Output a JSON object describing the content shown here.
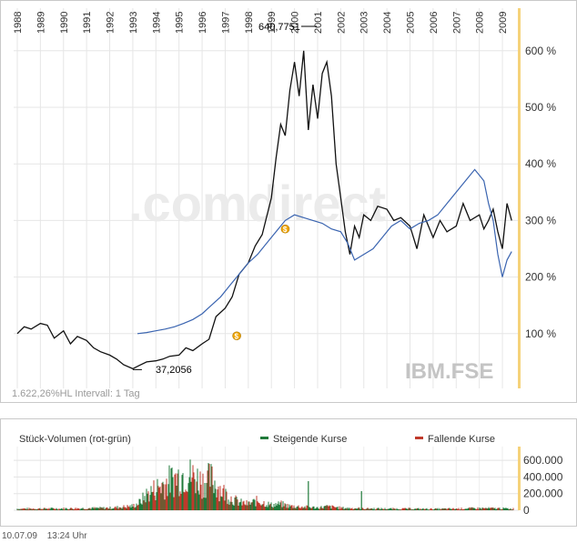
{
  "chart_data": [
    {
      "type": "line",
      "symbol": "IBM.FSE",
      "watermark": ".comdirect",
      "x_ticks": [
        "1988",
        "1989",
        "1990",
        "1991",
        "1992",
        "1993",
        "1994",
        "1995",
        "1996",
        "1997",
        "1998",
        "1999",
        "2000",
        "2001",
        "2002",
        "2003",
        "2004",
        "2005",
        "2006",
        "2007",
        "2008",
        "2009"
      ],
      "y_ticks": [
        100,
        200,
        300,
        400,
        500,
        600
      ],
      "y_tick_suffix": " %",
      "ylim": [
        0,
        650
      ],
      "max_label": "640,7751",
      "min_label": "37,2056",
      "info_text": "1.622,26%HL Intervall: 1 Tag",
      "series": [
        {
          "color": "#111111",
          "x": [
            1988.0,
            1988.3,
            1988.6,
            1989.0,
            1989.3,
            1989.6,
            1990.0,
            1990.3,
            1990.6,
            1991.0,
            1991.3,
            1991.6,
            1992.0,
            1992.3,
            1992.6,
            1993.0,
            1993.3,
            1993.6,
            1994.0,
            1994.3,
            1994.6,
            1995.0,
            1995.3,
            1995.6,
            1996.0,
            1996.3,
            1996.6,
            1997.0,
            1997.3,
            1997.6,
            1998.0,
            1998.3,
            1998.6,
            1999.0,
            1999.2,
            1999.4,
            1999.6,
            1999.8,
            2000.0,
            2000.2,
            2000.4,
            2000.6,
            2000.8,
            2001.0,
            2001.2,
            2001.4,
            2001.6,
            2001.8,
            2002.0,
            2002.2,
            2002.4,
            2002.6,
            2002.8,
            2003.0,
            2003.3,
            2003.6,
            2004.0,
            2004.3,
            2004.6,
            2005.0,
            2005.3,
            2005.6,
            2006.0,
            2006.3,
            2006.6,
            2007.0,
            2007.3,
            2007.6,
            2008.0,
            2008.2,
            2008.4,
            2008.6,
            2008.8,
            2009.0,
            2009.2,
            2009.4
          ],
          "values": [
            100,
            112,
            108,
            118,
            115,
            92,
            105,
            82,
            95,
            88,
            75,
            68,
            62,
            55,
            45,
            38,
            44,
            50,
            52,
            55,
            60,
            62,
            75,
            70,
            82,
            90,
            130,
            145,
            165,
            205,
            225,
            255,
            275,
            340,
            410,
            470,
            450,
            530,
            580,
            520,
            600,
            460,
            540,
            480,
            560,
            580,
            520,
            400,
            340,
            280,
            240,
            290,
            270,
            310,
            300,
            325,
            320,
            300,
            305,
            290,
            250,
            310,
            270,
            300,
            280,
            290,
            330,
            300,
            310,
            285,
            300,
            320,
            280,
            250,
            330,
            300
          ],
          "name": ""
        },
        {
          "color": "#3a64b0",
          "x": [
            1993.2,
            1993.6,
            1994.0,
            1994.4,
            1994.8,
            1995.2,
            1995.6,
            1996.0,
            1996.4,
            1996.8,
            1997.2,
            1997.6,
            1998.0,
            1998.4,
            1998.8,
            1999.2,
            1999.6,
            2000.0,
            2000.4,
            2000.8,
            2001.2,
            2001.6,
            2002.0,
            2002.3,
            2002.6,
            2003.0,
            2003.4,
            2003.8,
            2004.2,
            2004.6,
            2005.0,
            2005.4,
            2005.8,
            2006.2,
            2006.6,
            2007.0,
            2007.4,
            2007.8,
            2008.0,
            2008.2,
            2008.4,
            2008.6,
            2008.8,
            2009.0,
            2009.2,
            2009.4
          ],
          "values": [
            100,
            102,
            105,
            108,
            112,
            118,
            125,
            135,
            150,
            165,
            185,
            205,
            225,
            240,
            260,
            280,
            300,
            310,
            305,
            300,
            295,
            285,
            280,
            260,
            230,
            240,
            250,
            270,
            290,
            300,
            285,
            295,
            300,
            310,
            330,
            350,
            370,
            390,
            380,
            370,
            330,
            300,
            240,
            200,
            230,
            245
          ],
          "name": ""
        }
      ]
    },
    {
      "type": "bar",
      "title": "Stück-Volumen (rot-grün)",
      "legend": [
        {
          "label": "Steigende Kurse",
          "color": "#1f7a3a"
        },
        {
          "label": "Fallende Kurse",
          "color": "#c0392b"
        }
      ],
      "y_ticks": [
        "0",
        "200.000",
        "400.000",
        "600.000"
      ],
      "ylim": [
        0,
        700000
      ],
      "volume_profile": {
        "x": [
          1988.0,
          1990.0,
          1992.0,
          1993.0,
          1993.3,
          1993.6,
          1994.0,
          1994.4,
          1994.8,
          1995.2,
          1995.6,
          1996.0,
          1996.4,
          1996.8,
          1997.2,
          1997.6,
          1998.0,
          1998.4,
          1999.0,
          1999.4,
          1999.8,
          2000.2,
          2000.6,
          2001.0,
          2001.4,
          2001.8,
          2002.0,
          2003.0,
          2004.0,
          2005.0,
          2006.0,
          2007.0,
          2008.0,
          2009.0,
          2009.4
        ],
        "values": [
          30000,
          35000,
          45000,
          80000,
          150000,
          300000,
          420000,
          520000,
          600000,
          700000,
          650000,
          550000,
          600000,
          400000,
          250000,
          150000,
          120000,
          180000,
          100000,
          120000,
          80000,
          70000,
          60000,
          50000,
          70000,
          60000,
          45000,
          35000,
          30000,
          30000,
          25000,
          30000,
          40000,
          35000,
          30000
        ]
      },
      "spikes": [
        {
          "x": 2000.6,
          "value": 350000
        },
        {
          "x": 2002.9,
          "value": 230000
        }
      ]
    }
  ],
  "footer": {
    "date": "10.07.09",
    "time": "13:24 Uhr"
  }
}
